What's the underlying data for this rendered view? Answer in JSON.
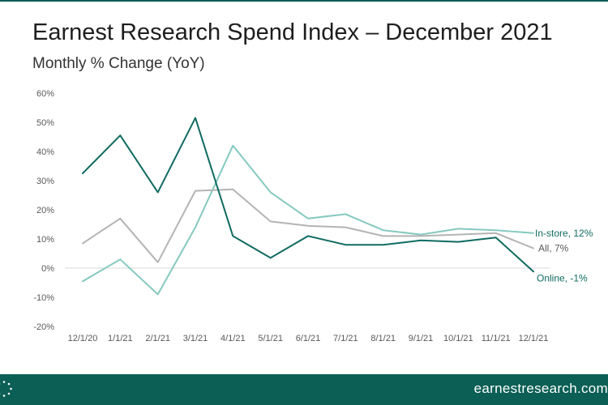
{
  "header": {
    "title": "Earnest Research Spend Index – December 2021",
    "subtitle": "Monthly % Change (YoY)"
  },
  "footer": {
    "url": "earnestresearch.com",
    "logo_icon": "dotted-circle-logo-icon"
  },
  "colors": {
    "brand": "#0b5f55",
    "online": "#0f6b61",
    "all": "#b4b4b4",
    "instore": "#86c9bf"
  },
  "chart_data": {
    "type": "line",
    "title": "Earnest Research Spend Index – December 2021",
    "subtitle": "Monthly % Change (YoY)",
    "xlabel": "",
    "ylabel": "",
    "categories": [
      "12/1/20",
      "1/1/21",
      "2/1/21",
      "3/1/21",
      "4/1/21",
      "5/1/21",
      "6/1/21",
      "7/1/21",
      "8/1/21",
      "9/1/21",
      "10/1/21",
      "11/1/21",
      "12/1/21"
    ],
    "ylim": [
      -20,
      60
    ],
    "yticks": [
      -20,
      -10,
      0,
      10,
      20,
      30,
      40,
      50,
      60
    ],
    "ytick_labels": [
      "-20%",
      "-10%",
      "0%",
      "10%",
      "20%",
      "30%",
      "40%",
      "50%",
      "60%"
    ],
    "grid": false,
    "zero_line": true,
    "legend": "end-of-line labels",
    "series": [
      {
        "name": "Online",
        "end_label": "Online, -1%",
        "color": "#0f6b61",
        "values": [
          32.5,
          45.5,
          26,
          51.5,
          11,
          3.5,
          11,
          8,
          8,
          9.5,
          9,
          10.5,
          -1.2
        ]
      },
      {
        "name": "All",
        "end_label": "All, 7%",
        "color": "#b4b4b4",
        "values": [
          8.5,
          17,
          2,
          26.5,
          27,
          16,
          14.5,
          14,
          11,
          11,
          11.5,
          12,
          6.8
        ]
      },
      {
        "name": "In-store",
        "end_label": "In-store, 12%",
        "color": "#86c9bf",
        "values": [
          -4.5,
          3,
          -9,
          14,
          42,
          26,
          17,
          18.5,
          13,
          11.5,
          13.5,
          13,
          12
        ]
      }
    ]
  }
}
